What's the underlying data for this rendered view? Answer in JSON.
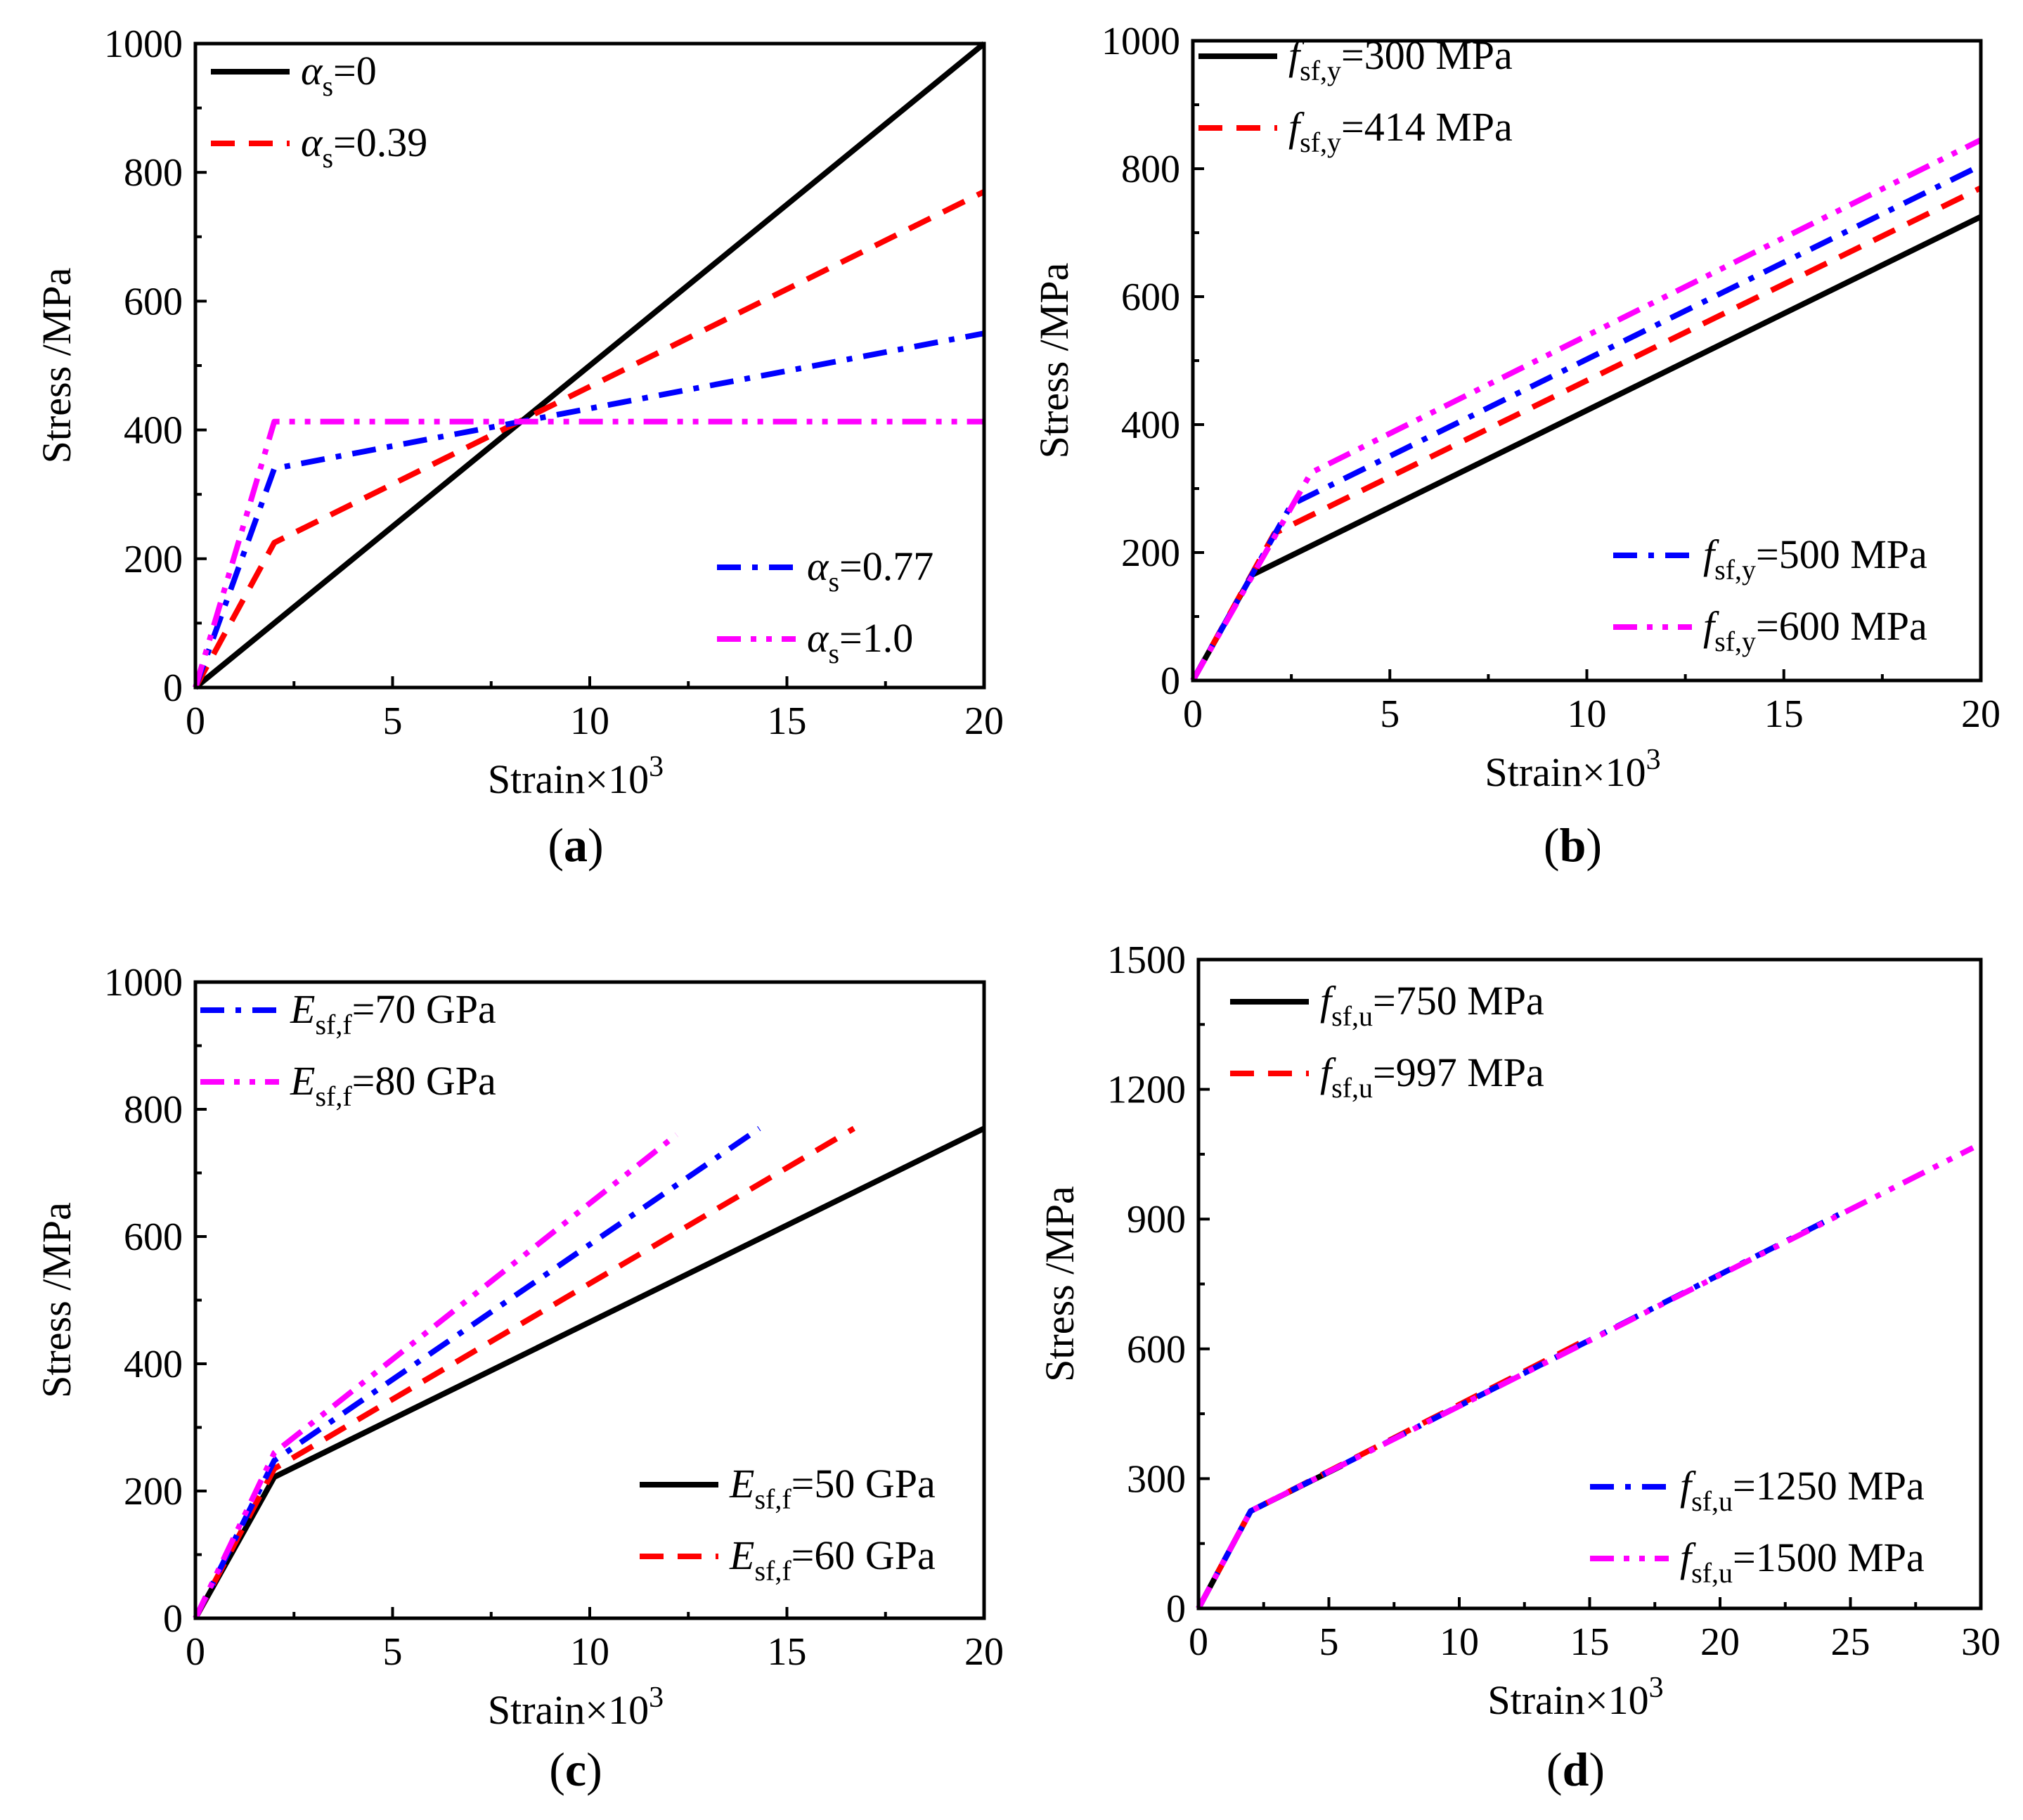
{
  "colors": {
    "black": "#000000",
    "red": "#ff0000",
    "blue": "#0000ff",
    "magenta": "#ff00ff"
  },
  "chart_data": [
    {
      "id": "a",
      "type": "line",
      "panel_label": "a",
      "xlabel": "Strain×10",
      "xlabel_exponent": "3",
      "ylabel": "Stress /MPa",
      "xlim": [
        0,
        20
      ],
      "ylim": [
        0,
        1000
      ],
      "xticks": [
        0,
        5,
        10,
        15,
        20
      ],
      "yticks": [
        0,
        200,
        400,
        600,
        800,
        1000
      ],
      "legend": [
        {
          "placement": "top-left",
          "series": [
            0,
            1
          ]
        },
        {
          "placement": "bottom-right",
          "series": [
            2,
            3
          ]
        }
      ],
      "series": [
        {
          "symbol": "α",
          "sub": "s",
          "value": "=0",
          "style": "solid",
          "color": "black",
          "x": [
            0,
            20
          ],
          "y": [
            0,
            1000
          ]
        },
        {
          "symbol": "α",
          "sub": "s",
          "value": "=0.39",
          "style": "dash",
          "color": "red",
          "x": [
            0,
            2,
            20
          ],
          "y": [
            0,
            225,
            770
          ]
        },
        {
          "symbol": "α",
          "sub": "s",
          "value": "=0.77",
          "style": "dashdot",
          "color": "blue",
          "x": [
            0,
            2,
            20
          ],
          "y": [
            0,
            340,
            550
          ]
        },
        {
          "symbol": "α",
          "sub": "s",
          "value": "=1.0",
          "style": "dashdotdot",
          "color": "magenta",
          "x": [
            0,
            2,
            20
          ],
          "y": [
            0,
            413,
            413
          ]
        }
      ]
    },
    {
      "id": "b",
      "type": "line",
      "panel_label": "b",
      "xlabel": "Strain×10",
      "xlabel_exponent": "3",
      "ylabel": "Stress /MPa",
      "xlim": [
        0,
        20
      ],
      "ylim": [
        0,
        1000
      ],
      "xticks": [
        0,
        5,
        10,
        15,
        20
      ],
      "yticks": [
        0,
        200,
        400,
        600,
        800,
        1000
      ],
      "legend": [
        {
          "placement": "top-left",
          "series": [
            0,
            1
          ]
        },
        {
          "placement": "bottom-right",
          "series": [
            2,
            3
          ]
        }
      ],
      "series": [
        {
          "symbol": "f",
          "sub": "sf,y",
          "value": "=300 MPa",
          "style": "solid",
          "color": "black",
          "x": [
            0,
            1.5,
            20
          ],
          "y": [
            0,
            165,
            725
          ]
        },
        {
          "symbol": "f",
          "sub": "sf,y",
          "value": "=414 MPa",
          "style": "dash",
          "color": "red",
          "x": [
            0,
            2.07,
            20
          ],
          "y": [
            0,
            230,
            770
          ]
        },
        {
          "symbol": "f",
          "sub": "sf,y",
          "value": "=500 MPa",
          "style": "dashdot",
          "color": "blue",
          "x": [
            0,
            2.5,
            20
          ],
          "y": [
            0,
            275,
            805
          ]
        },
        {
          "symbol": "f",
          "sub": "sf,y",
          "value": "=600 MPa",
          "style": "dashdotdot",
          "color": "magenta",
          "x": [
            0,
            3.0,
            20
          ],
          "y": [
            0,
            325,
            845
          ]
        }
      ]
    },
    {
      "id": "c",
      "type": "line",
      "panel_label": "c",
      "xlabel": "Strain×10",
      "xlabel_exponent": "3",
      "ylabel": "Stress /MPa",
      "xlim": [
        0,
        20
      ],
      "ylim": [
        0,
        1000
      ],
      "xticks": [
        0,
        5,
        10,
        15,
        20
      ],
      "yticks": [
        0,
        200,
        400,
        600,
        800,
        1000
      ],
      "legend": [
        {
          "placement": "top-left",
          "series": [
            2,
            3
          ]
        },
        {
          "placement": "bottom-right",
          "series": [
            0,
            1
          ]
        }
      ],
      "series": [
        {
          "symbol": "E",
          "sub": "sf,f",
          "value": "=50 GPa",
          "style": "solid",
          "color": "black",
          "x": [
            0,
            2,
            20
          ],
          "y": [
            0,
            222,
            770
          ]
        },
        {
          "symbol": "E",
          "sub": "sf,f",
          "value": "=60 GPa",
          "style": "dash",
          "color": "red",
          "x": [
            0,
            2,
            16.7
          ],
          "y": [
            0,
            235,
            770
          ]
        },
        {
          "symbol": "E",
          "sub": "sf,f",
          "value": "=70 GPa",
          "style": "dashdot",
          "color": "blue",
          "x": [
            0,
            2,
            14.3
          ],
          "y": [
            0,
            248,
            770
          ]
        },
        {
          "symbol": "E",
          "sub": "sf,f",
          "value": "=80 GPa",
          "style": "dashdotdot",
          "color": "magenta",
          "x": [
            0,
            2,
            12.2
          ],
          "y": [
            0,
            260,
            760
          ]
        }
      ]
    },
    {
      "id": "d",
      "type": "line",
      "panel_label": "d",
      "xlabel": "Strain×10",
      "xlabel_exponent": "3",
      "ylabel": "Stress /MPa",
      "xlim": [
        0,
        30
      ],
      "ylim": [
        0,
        1500
      ],
      "xticks": [
        0,
        5,
        10,
        15,
        20,
        25,
        30
      ],
      "yticks": [
        0,
        300,
        600,
        900,
        1200,
        1500
      ],
      "legend": [
        {
          "placement": "top-left",
          "series": [
            0,
            1
          ]
        },
        {
          "placement": "bottom-right",
          "series": [
            2,
            3
          ]
        }
      ],
      "series": [
        {
          "symbol": "f",
          "sub": "sf,u",
          "value": "=750 MPa",
          "style": "solid",
          "color": "black",
          "x": [
            0,
            2,
            5.5
          ],
          "y": [
            0,
            225,
            330
          ]
        },
        {
          "symbol": "f",
          "sub": "sf,u",
          "value": "=997 MPa",
          "style": "dash",
          "color": "red",
          "x": [
            0,
            2,
            15
          ],
          "y": [
            0,
            225,
            625
          ]
        },
        {
          "symbol": "f",
          "sub": "sf,u",
          "value": "=1250 MPa",
          "style": "dashdot",
          "color": "blue",
          "x": [
            0,
            2,
            24.7
          ],
          "y": [
            0,
            225,
            915
          ]
        },
        {
          "symbol": "f",
          "sub": "sf,u",
          "value": "=1500 MPa",
          "style": "dashdotdot",
          "color": "magenta",
          "x": [
            0,
            2,
            29.7
          ],
          "y": [
            0,
            225,
            1065
          ]
        }
      ]
    }
  ]
}
